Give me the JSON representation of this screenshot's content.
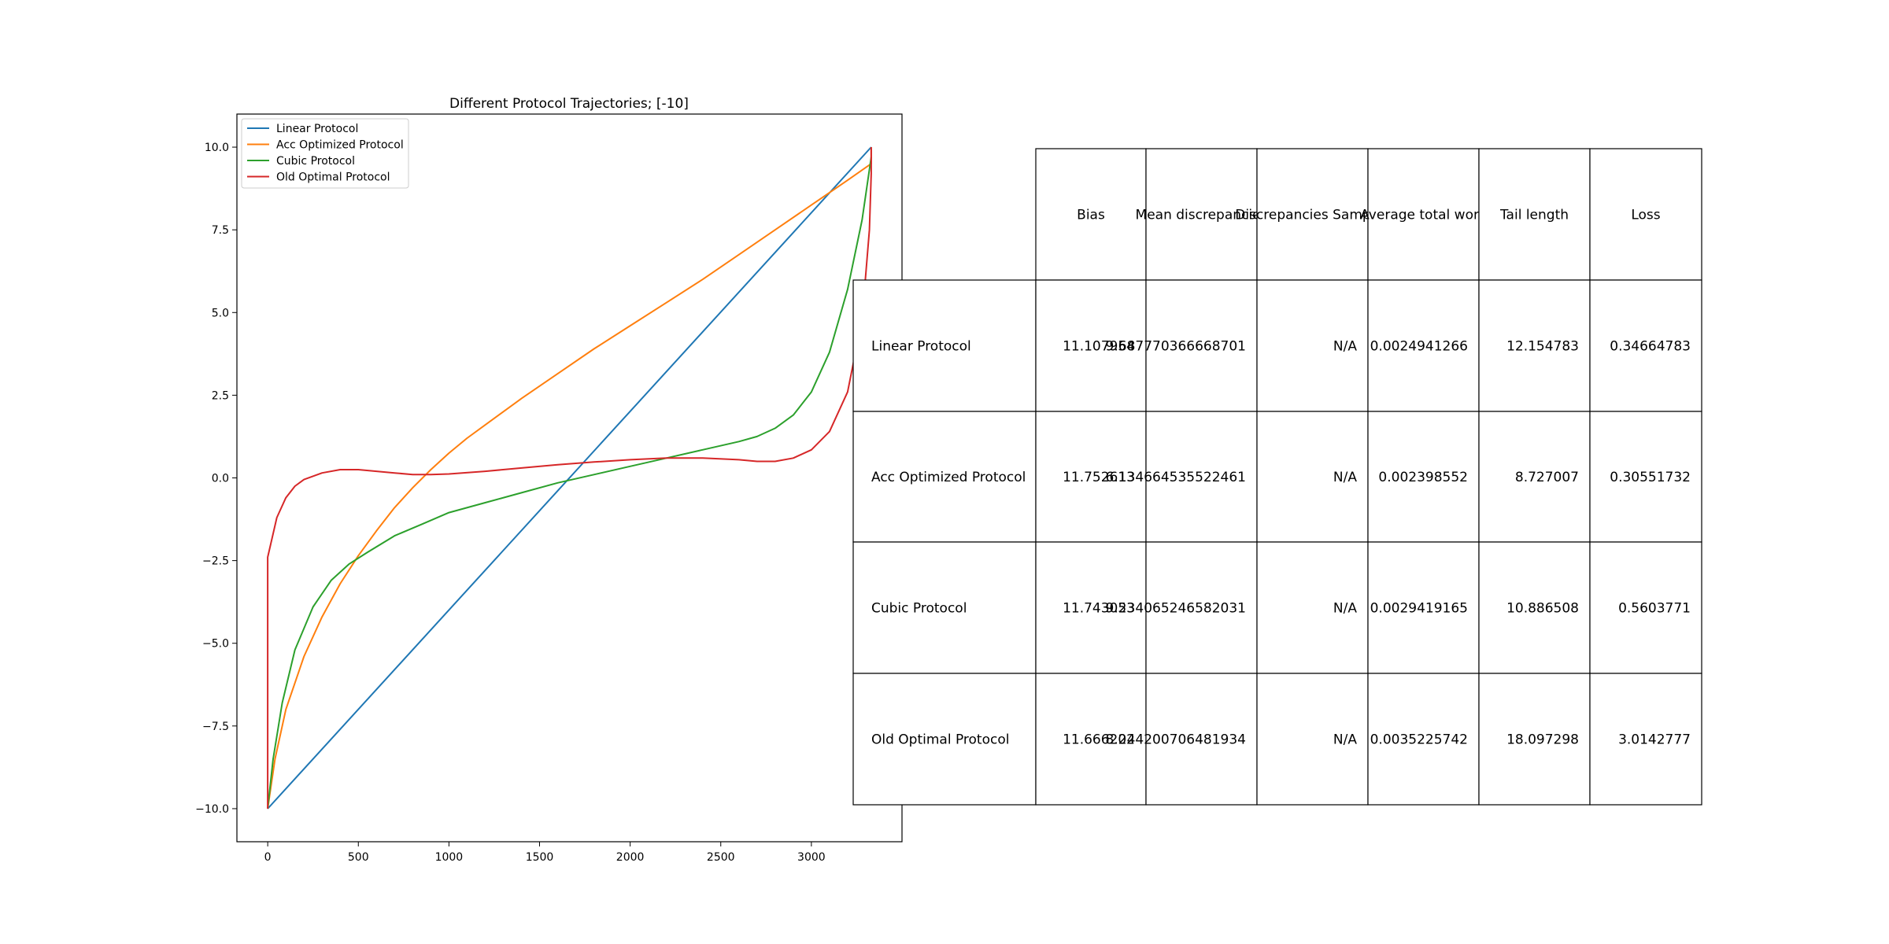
{
  "chart_data": {
    "type": "line",
    "title": "Different Protocol Trajectories; [-10]",
    "xlabel": "",
    "ylabel": "",
    "xlim": [
      -170,
      3500
    ],
    "ylim": [
      -11,
      11
    ],
    "x_ticks": [
      0,
      500,
      1000,
      1500,
      2000,
      2500,
      3000
    ],
    "y_ticks": [
      -10.0,
      -7.5,
      -5.0,
      -2.5,
      0.0,
      2.5,
      5.0,
      7.5,
      10.0
    ],
    "grid": false,
    "legend_placement": "upper-left",
    "series": [
      {
        "name": "Linear Protocol",
        "color": "#1f77b4",
        "points": [
          [
            0,
            -10
          ],
          [
            3330,
            10
          ]
        ]
      },
      {
        "name": "Acc Optimized Protocol",
        "color": "#ff7f0e",
        "points": [
          [
            0,
            -10
          ],
          [
            40,
            -8.5
          ],
          [
            100,
            -7.0
          ],
          [
            200,
            -5.4
          ],
          [
            300,
            -4.2
          ],
          [
            400,
            -3.2
          ],
          [
            500,
            -2.35
          ],
          [
            600,
            -1.6
          ],
          [
            700,
            -0.9
          ],
          [
            800,
            -0.3
          ],
          [
            900,
            0.25
          ],
          [
            1000,
            0.75
          ],
          [
            1100,
            1.2
          ],
          [
            1200,
            1.6
          ],
          [
            1400,
            2.4
          ],
          [
            1600,
            3.15
          ],
          [
            1800,
            3.9
          ],
          [
            2000,
            4.6
          ],
          [
            2200,
            5.3
          ],
          [
            2400,
            6.0
          ],
          [
            2600,
            6.75
          ],
          [
            2800,
            7.5
          ],
          [
            3000,
            8.25
          ],
          [
            3200,
            9.0
          ],
          [
            3330,
            9.5
          ],
          [
            3330,
            10
          ]
        ]
      },
      {
        "name": "Cubic Protocol",
        "color": "#2ca02c",
        "points": [
          [
            0,
            -10
          ],
          [
            30,
            -8.5
          ],
          [
            80,
            -6.8
          ],
          [
            150,
            -5.2
          ],
          [
            250,
            -3.9
          ],
          [
            350,
            -3.1
          ],
          [
            450,
            -2.6
          ],
          [
            550,
            -2.25
          ],
          [
            700,
            -1.75
          ],
          [
            850,
            -1.4
          ],
          [
            1000,
            -1.05
          ],
          [
            1200,
            -0.75
          ],
          [
            1400,
            -0.45
          ],
          [
            1600,
            -0.15
          ],
          [
            1800,
            0.1
          ],
          [
            2000,
            0.35
          ],
          [
            2200,
            0.6
          ],
          [
            2400,
            0.85
          ],
          [
            2600,
            1.1
          ],
          [
            2700,
            1.25
          ],
          [
            2800,
            1.5
          ],
          [
            2900,
            1.9
          ],
          [
            3000,
            2.6
          ],
          [
            3100,
            3.8
          ],
          [
            3200,
            5.7
          ],
          [
            3280,
            7.8
          ],
          [
            3330,
            9.7
          ]
        ]
      },
      {
        "name": "Old Optimal Protocol",
        "color": "#d62728",
        "points": [
          [
            0,
            -10
          ],
          [
            0,
            -2.4
          ],
          [
            50,
            -1.2
          ],
          [
            100,
            -0.6
          ],
          [
            150,
            -0.25
          ],
          [
            200,
            -0.05
          ],
          [
            300,
            0.15
          ],
          [
            400,
            0.25
          ],
          [
            500,
            0.25
          ],
          [
            600,
            0.2
          ],
          [
            700,
            0.15
          ],
          [
            800,
            0.1
          ],
          [
            900,
            0.1
          ],
          [
            1000,
            0.12
          ],
          [
            1200,
            0.2
          ],
          [
            1400,
            0.3
          ],
          [
            1600,
            0.4
          ],
          [
            1800,
            0.48
          ],
          [
            2000,
            0.55
          ],
          [
            2200,
            0.6
          ],
          [
            2400,
            0.6
          ],
          [
            2600,
            0.55
          ],
          [
            2700,
            0.5
          ],
          [
            2800,
            0.5
          ],
          [
            2900,
            0.6
          ],
          [
            3000,
            0.85
          ],
          [
            3100,
            1.4
          ],
          [
            3200,
            2.6
          ],
          [
            3280,
            4.8
          ],
          [
            3320,
            7.5
          ],
          [
            3330,
            9.2
          ],
          [
            3330,
            10
          ]
        ]
      }
    ]
  },
  "table": {
    "columns": [
      "Bias",
      "Mean discrepancies",
      "Discrepancies Samples",
      "Average total work",
      "Tail length",
      "Loss"
    ],
    "rows": [
      {
        "label": "Linear Protocol",
        "cells": [
          "11.107954",
          "9.687770366668701",
          "N/A",
          "0.0024941266",
          "12.154783",
          "0.34664783"
        ]
      },
      {
        "label": "Acc Optimized Protocol",
        "cells": [
          "11.752613",
          "6.134664535522461",
          "N/A",
          "0.002398552",
          "8.727007",
          "0.30551732"
        ]
      },
      {
        "label": "Cubic Protocol",
        "cells": [
          "11.743053",
          "9.234065246582031",
          "N/A",
          "0.0029419165",
          "10.886508",
          "0.5603771"
        ]
      },
      {
        "label": "Old Optimal Protocol",
        "cells": [
          "11.666202",
          "8.244200706481934",
          "N/A",
          "0.0035225742",
          "18.097298",
          "3.0142777"
        ]
      }
    ]
  }
}
